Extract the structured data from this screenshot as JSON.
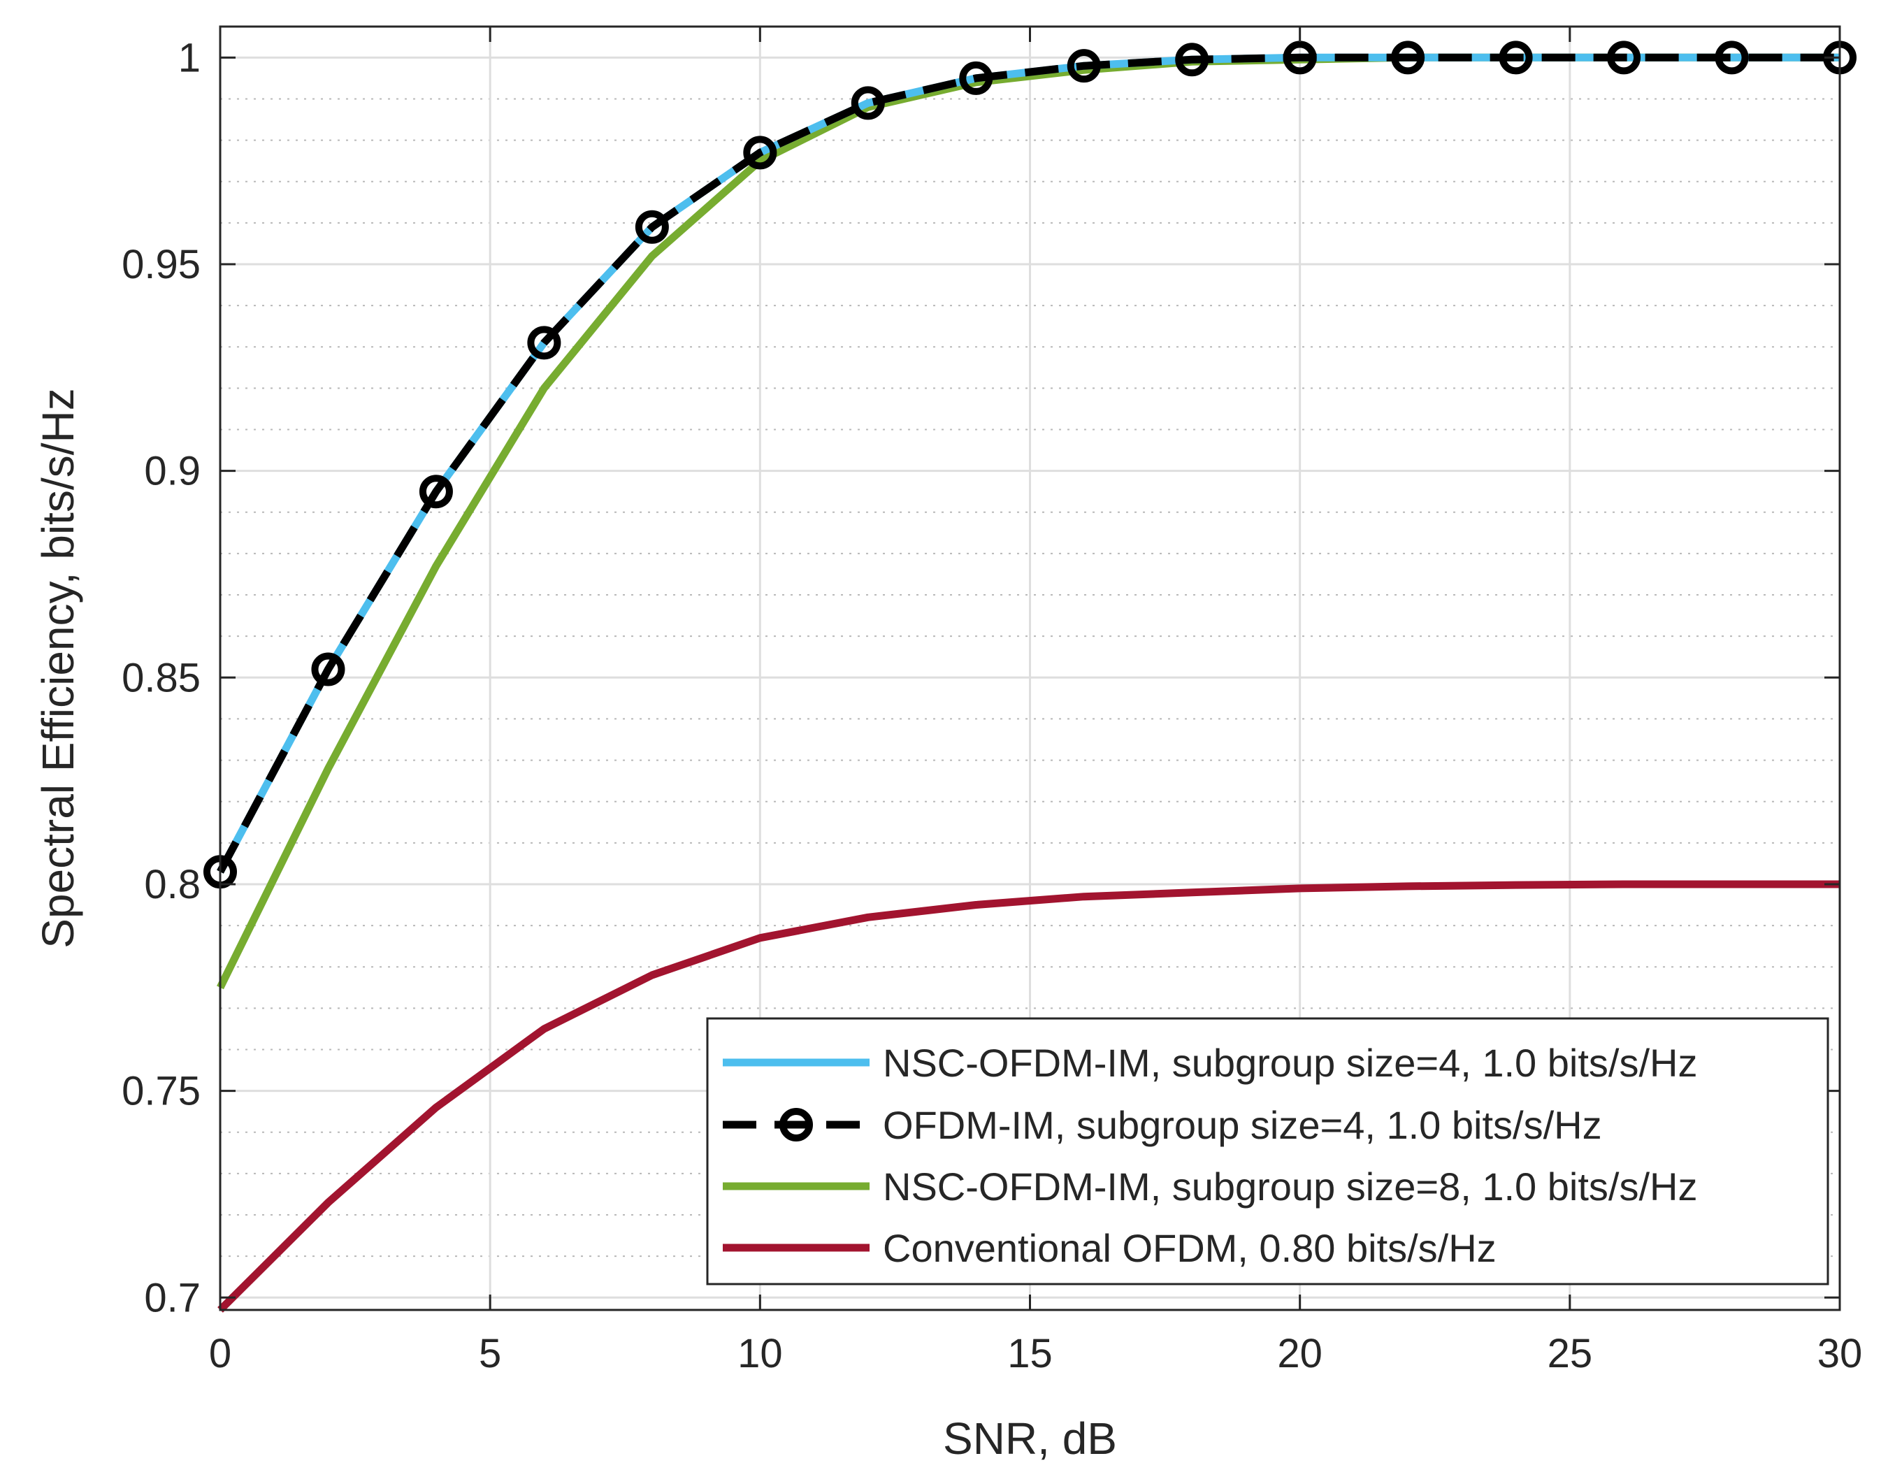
{
  "chart_data": {
    "type": "line",
    "title": "",
    "xlabel": "SNR, dB",
    "ylabel": "Spectral Efficiency, bits/s/Hz",
    "xlim": [
      0,
      30
    ],
    "ylim": [
      0.697,
      1.0075
    ],
    "xticks": [
      0,
      5,
      10,
      15,
      20,
      25,
      30
    ],
    "xtick_labels": [
      "0",
      "5",
      "10",
      "15",
      "20",
      "25",
      "30"
    ],
    "yticks": [
      0.7,
      0.75,
      0.8,
      0.85,
      0.9,
      0.95,
      1.0
    ],
    "ytick_labels": [
      "0.7",
      "0.75",
      "0.8",
      "0.85",
      "0.9",
      "0.95",
      "1"
    ],
    "grid": true,
    "minor_grid": true,
    "legend_position": "lower-right",
    "x": [
      0,
      2,
      4,
      6,
      8,
      10,
      12,
      14,
      16,
      18,
      20,
      22,
      24,
      26,
      28,
      30
    ],
    "series": [
      {
        "name": "NSC-OFDM-IM, subgroup size=4, 1.0 bits/s/Hz",
        "color": "#4DBEEE",
        "style": "solid",
        "marker": "none",
        "values": [
          0.803,
          0.852,
          0.895,
          0.931,
          0.959,
          0.977,
          0.989,
          0.995,
          0.998,
          0.9995,
          1.0,
          1.0,
          1.0,
          1.0,
          1.0,
          1.0
        ]
      },
      {
        "name": "OFDM-IM, subgroup size=4, 1.0 bits/s/Hz",
        "color": "#000000",
        "style": "dashed",
        "marker": "circle",
        "values": [
          0.803,
          0.852,
          0.895,
          0.931,
          0.959,
          0.977,
          0.989,
          0.995,
          0.998,
          0.9995,
          1.0,
          1.0,
          1.0,
          1.0,
          1.0,
          1.0
        ]
      },
      {
        "name": "NSC-OFDM-IM, subgroup size=8, 1.0 bits/s/Hz",
        "color": "#77AC30",
        "style": "solid",
        "marker": "none",
        "values": [
          0.775,
          0.828,
          0.877,
          0.92,
          0.952,
          0.975,
          0.988,
          0.994,
          0.997,
          0.999,
          0.9995,
          1.0,
          1.0,
          1.0,
          1.0,
          1.0
        ]
      },
      {
        "name": "Conventional OFDM, 0.80 bits/s/Hz",
        "color": "#A2142F",
        "style": "solid",
        "marker": "none",
        "values": [
          0.697,
          0.723,
          0.746,
          0.765,
          0.778,
          0.787,
          0.792,
          0.795,
          0.797,
          0.798,
          0.799,
          0.7995,
          0.7998,
          0.8,
          0.8,
          0.8
        ]
      }
    ]
  }
}
